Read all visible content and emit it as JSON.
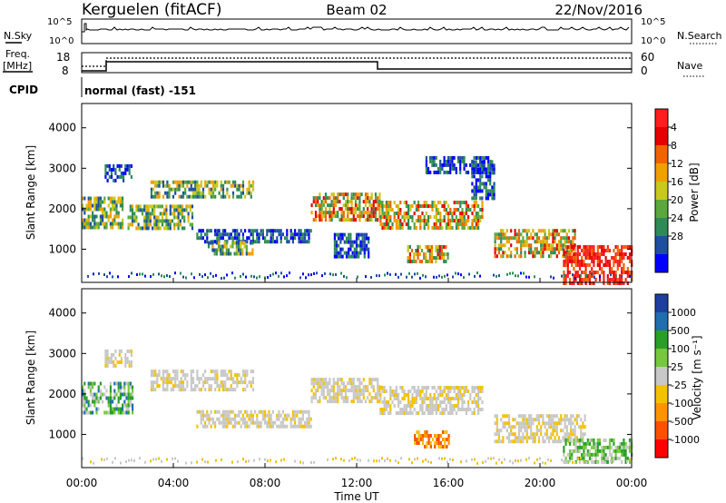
{
  "header": {
    "station": "Kerguelen (fitACF)",
    "beam": "Beam 02",
    "date": "22/Nov/2016"
  },
  "status": {
    "nsky_label": "N.Sky",
    "nsky_ticks": [
      "10^5",
      "10^0"
    ],
    "nsearch_label": "N.Search",
    "nsearch_ticks": [
      "10^5",
      "10^0"
    ],
    "freq_label_1": "Freq.",
    "freq_label_2": "[MHz]",
    "freq_ticks": [
      "18",
      "8"
    ],
    "nave_label": "Nave",
    "nave_ticks": [
      "60",
      "0"
    ],
    "cpid_label": "CPID",
    "cpid_text": "normal (fast) -151"
  },
  "colors": {
    "power": [
      "#0000ff",
      "#1f4fa0",
      "#2e8b57",
      "#5aa83c",
      "#c8c81e",
      "#f0a000",
      "#f06400",
      "#e60000",
      "#ff1e1e"
    ],
    "velocity": [
      "#ff0000",
      "#ff5000",
      "#ff9400",
      "#f3c200",
      "#c8c8c8",
      "#76c83c",
      "#28a028",
      "#1f6fb0",
      "#1f3fa0"
    ]
  },
  "chart_data": [
    {
      "type": "heatmap",
      "title": "",
      "xlabel": "",
      "ylabel": "Slant Range [km]",
      "x_ticks": [
        "00:00",
        "04:00",
        "08:00",
        "12:00",
        "16:00",
        "20:00",
        "00:00"
      ],
      "x_range_hours": [
        0,
        24
      ],
      "ylim": [
        180,
        4600
      ],
      "y_ticks": [
        1000,
        2000,
        3000,
        4000
      ],
      "colorbar": {
        "label": "Power [dB]",
        "ticks": [
          "4",
          "8",
          "12",
          "16",
          "20",
          "24",
          "28"
        ]
      },
      "regions": [
        {
          "t0": 0.0,
          "t1": 1.8,
          "r0": 1500,
          "r1": 2300,
          "level": "mid"
        },
        {
          "t0": 1.0,
          "t1": 2.2,
          "r0": 2700,
          "r1": 3100,
          "level": "low"
        },
        {
          "t0": 2.0,
          "t1": 4.8,
          "r0": 1500,
          "r1": 2100,
          "level": "mid"
        },
        {
          "t0": 3.0,
          "t1": 7.5,
          "r0": 2300,
          "r1": 2700,
          "level": "mid"
        },
        {
          "t0": 5.0,
          "t1": 10.0,
          "r0": 1200,
          "r1": 1500,
          "level": "low"
        },
        {
          "t0": 5.5,
          "t1": 7.5,
          "r0": 900,
          "r1": 1200,
          "level": "mid"
        },
        {
          "t0": 10.0,
          "t1": 13.0,
          "r0": 1700,
          "r1": 2400,
          "level": "high"
        },
        {
          "t0": 11.0,
          "t1": 12.5,
          "r0": 800,
          "r1": 1400,
          "level": "low"
        },
        {
          "t0": 13.0,
          "t1": 17.5,
          "r0": 1500,
          "r1": 2200,
          "level": "high"
        },
        {
          "t0": 14.2,
          "t1": 16.0,
          "r0": 700,
          "r1": 1100,
          "level": "high"
        },
        {
          "t0": 15.0,
          "t1": 17.8,
          "r0": 2900,
          "r1": 3300,
          "level": "low"
        },
        {
          "t0": 17.0,
          "t1": 18.0,
          "r0": 2300,
          "r1": 3200,
          "level": "low"
        },
        {
          "t0": 18.0,
          "t1": 21.5,
          "r0": 800,
          "r1": 1500,
          "level": "high"
        },
        {
          "t0": 21.0,
          "t1": 24.0,
          "r0": 200,
          "r1": 1100,
          "level": "max"
        }
      ]
    },
    {
      "type": "heatmap",
      "title": "",
      "xlabel": "Time UT",
      "ylabel": "Slant Range [km]",
      "x_ticks": [
        "00:00",
        "04:00",
        "08:00",
        "12:00",
        "16:00",
        "20:00",
        "00:00"
      ],
      "x_range_hours": [
        0,
        24
      ],
      "ylim": [
        180,
        4600
      ],
      "y_ticks": [
        1000,
        2000,
        3000,
        4000
      ],
      "colorbar": {
        "label": "Velocity [m s⁻¹]",
        "ticks": [
          "1000",
          "500",
          "100",
          "25",
          "-25",
          "-100",
          "-500",
          "-1000"
        ]
      },
      "regions": [
        {
          "t0": 0.0,
          "t1": 2.2,
          "r0": 1500,
          "r1": 2300,
          "level": "towards"
        },
        {
          "t0": 1.0,
          "t1": 2.2,
          "r0": 2700,
          "r1": 3100,
          "level": "zero"
        },
        {
          "t0": 3.0,
          "t1": 7.5,
          "r0": 2100,
          "r1": 2600,
          "level": "zero"
        },
        {
          "t0": 5.0,
          "t1": 10.0,
          "r0": 1200,
          "r1": 1600,
          "level": "zero"
        },
        {
          "t0": 10.0,
          "t1": 13.0,
          "r0": 1800,
          "r1": 2400,
          "level": "zero"
        },
        {
          "t0": 13.0,
          "t1": 17.5,
          "r0": 1500,
          "r1": 2200,
          "level": "zero"
        },
        {
          "t0": 14.5,
          "t1": 16.0,
          "r0": 700,
          "r1": 1100,
          "level": "away"
        },
        {
          "t0": 18.0,
          "t1": 22.0,
          "r0": 800,
          "r1": 1500,
          "level": "zero"
        },
        {
          "t0": 21.0,
          "t1": 24.0,
          "r0": 300,
          "r1": 900,
          "level": "slight"
        }
      ]
    }
  ]
}
